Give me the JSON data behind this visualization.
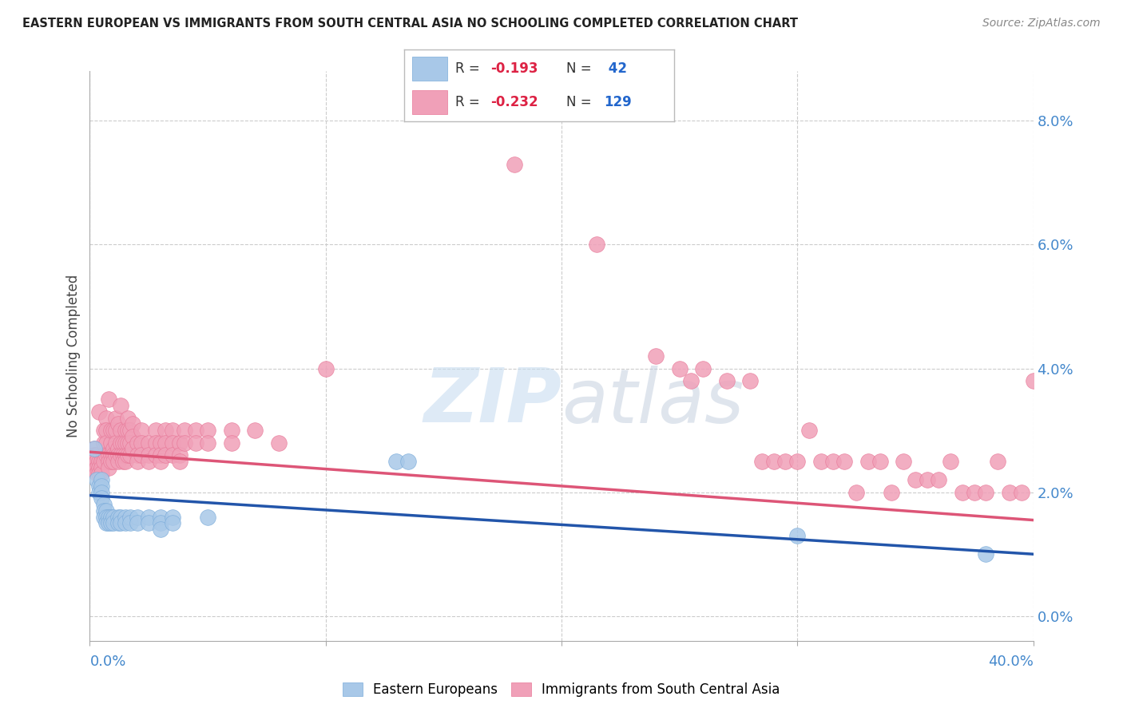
{
  "title": "EASTERN EUROPEAN VS IMMIGRANTS FROM SOUTH CENTRAL ASIA NO SCHOOLING COMPLETED CORRELATION CHART",
  "source": "Source: ZipAtlas.com",
  "ylabel": "No Schooling Completed",
  "ytick_vals": [
    0.0,
    0.02,
    0.04,
    0.06,
    0.08
  ],
  "xmin": 0.0,
  "xmax": 0.4,
  "ymin": -0.004,
  "ymax": 0.088,
  "blue_color": "#a8c8e8",
  "pink_color": "#f0a0b8",
  "blue_edge_color": "#7aabda",
  "pink_edge_color": "#e87898",
  "blue_line_color": "#2255aa",
  "pink_line_color": "#dd5577",
  "legend_box_color": "#e8f0f8",
  "legend_pink_box": "#f8d0d8",
  "r_val_color": "#dd2244",
  "n_val_color": "#2266cc",
  "grid_color": "#cccccc",
  "watermark_zip": "ZIP",
  "watermark_atlas": "atlas",
  "background_color": "#ffffff",
  "blue_scatter": [
    [
      0.002,
      0.027
    ],
    [
      0.003,
      0.022
    ],
    [
      0.004,
      0.021
    ],
    [
      0.004,
      0.02
    ],
    [
      0.005,
      0.022
    ],
    [
      0.005,
      0.021
    ],
    [
      0.005,
      0.02
    ],
    [
      0.005,
      0.019
    ],
    [
      0.006,
      0.018
    ],
    [
      0.006,
      0.017
    ],
    [
      0.006,
      0.016
    ],
    [
      0.007,
      0.017
    ],
    [
      0.007,
      0.016
    ],
    [
      0.007,
      0.015
    ],
    [
      0.008,
      0.016
    ],
    [
      0.008,
      0.015
    ],
    [
      0.009,
      0.016
    ],
    [
      0.009,
      0.015
    ],
    [
      0.01,
      0.016
    ],
    [
      0.01,
      0.015
    ],
    [
      0.012,
      0.016
    ],
    [
      0.012,
      0.015
    ],
    [
      0.013,
      0.016
    ],
    [
      0.013,
      0.015
    ],
    [
      0.015,
      0.016
    ],
    [
      0.015,
      0.015
    ],
    [
      0.017,
      0.016
    ],
    [
      0.017,
      0.015
    ],
    [
      0.02,
      0.016
    ],
    [
      0.02,
      0.015
    ],
    [
      0.025,
      0.016
    ],
    [
      0.025,
      0.015
    ],
    [
      0.03,
      0.016
    ],
    [
      0.03,
      0.015
    ],
    [
      0.03,
      0.014
    ],
    [
      0.035,
      0.016
    ],
    [
      0.035,
      0.015
    ],
    [
      0.05,
      0.016
    ],
    [
      0.13,
      0.025
    ],
    [
      0.135,
      0.025
    ],
    [
      0.3,
      0.013
    ],
    [
      0.38,
      0.01
    ]
  ],
  "pink_scatter": [
    [
      0.002,
      0.027
    ],
    [
      0.002,
      0.026
    ],
    [
      0.002,
      0.025
    ],
    [
      0.002,
      0.024
    ],
    [
      0.003,
      0.026
    ],
    [
      0.003,
      0.025
    ],
    [
      0.003,
      0.024
    ],
    [
      0.003,
      0.023
    ],
    [
      0.004,
      0.025
    ],
    [
      0.004,
      0.024
    ],
    [
      0.004,
      0.023
    ],
    [
      0.004,
      0.033
    ],
    [
      0.005,
      0.026
    ],
    [
      0.005,
      0.025
    ],
    [
      0.005,
      0.024
    ],
    [
      0.005,
      0.023
    ],
    [
      0.006,
      0.028
    ],
    [
      0.006,
      0.026
    ],
    [
      0.006,
      0.025
    ],
    [
      0.006,
      0.03
    ],
    [
      0.007,
      0.032
    ],
    [
      0.007,
      0.03
    ],
    [
      0.007,
      0.028
    ],
    [
      0.007,
      0.026
    ],
    [
      0.008,
      0.026
    ],
    [
      0.008,
      0.025
    ],
    [
      0.008,
      0.024
    ],
    [
      0.008,
      0.035
    ],
    [
      0.009,
      0.028
    ],
    [
      0.009,
      0.026
    ],
    [
      0.009,
      0.025
    ],
    [
      0.009,
      0.03
    ],
    [
      0.01,
      0.027
    ],
    [
      0.01,
      0.026
    ],
    [
      0.01,
      0.025
    ],
    [
      0.01,
      0.03
    ],
    [
      0.011,
      0.03
    ],
    [
      0.011,
      0.028
    ],
    [
      0.011,
      0.026
    ],
    [
      0.011,
      0.032
    ],
    [
      0.012,
      0.027
    ],
    [
      0.012,
      0.026
    ],
    [
      0.012,
      0.025
    ],
    [
      0.012,
      0.031
    ],
    [
      0.013,
      0.03
    ],
    [
      0.013,
      0.028
    ],
    [
      0.013,
      0.026
    ],
    [
      0.013,
      0.034
    ],
    [
      0.014,
      0.028
    ],
    [
      0.014,
      0.026
    ],
    [
      0.014,
      0.025
    ],
    [
      0.015,
      0.03
    ],
    [
      0.015,
      0.028
    ],
    [
      0.015,
      0.026
    ],
    [
      0.015,
      0.025
    ],
    [
      0.016,
      0.032
    ],
    [
      0.016,
      0.03
    ],
    [
      0.016,
      0.028
    ],
    [
      0.016,
      0.026
    ],
    [
      0.017,
      0.03
    ],
    [
      0.017,
      0.028
    ],
    [
      0.017,
      0.026
    ],
    [
      0.018,
      0.031
    ],
    [
      0.018,
      0.029
    ],
    [
      0.018,
      0.027
    ],
    [
      0.02,
      0.028
    ],
    [
      0.02,
      0.026
    ],
    [
      0.02,
      0.025
    ],
    [
      0.022,
      0.03
    ],
    [
      0.022,
      0.028
    ],
    [
      0.022,
      0.026
    ],
    [
      0.025,
      0.028
    ],
    [
      0.025,
      0.026
    ],
    [
      0.025,
      0.025
    ],
    [
      0.028,
      0.03
    ],
    [
      0.028,
      0.028
    ],
    [
      0.028,
      0.026
    ],
    [
      0.03,
      0.028
    ],
    [
      0.03,
      0.026
    ],
    [
      0.03,
      0.025
    ],
    [
      0.032,
      0.03
    ],
    [
      0.032,
      0.028
    ],
    [
      0.032,
      0.026
    ],
    [
      0.035,
      0.03
    ],
    [
      0.035,
      0.028
    ],
    [
      0.035,
      0.026
    ],
    [
      0.038,
      0.028
    ],
    [
      0.038,
      0.026
    ],
    [
      0.038,
      0.025
    ],
    [
      0.04,
      0.03
    ],
    [
      0.04,
      0.028
    ],
    [
      0.045,
      0.03
    ],
    [
      0.045,
      0.028
    ],
    [
      0.05,
      0.03
    ],
    [
      0.05,
      0.028
    ],
    [
      0.06,
      0.03
    ],
    [
      0.06,
      0.028
    ],
    [
      0.07,
      0.03
    ],
    [
      0.08,
      0.028
    ],
    [
      0.1,
      0.04
    ],
    [
      0.18,
      0.073
    ],
    [
      0.215,
      0.06
    ],
    [
      0.24,
      0.042
    ],
    [
      0.25,
      0.04
    ],
    [
      0.255,
      0.038
    ],
    [
      0.26,
      0.04
    ],
    [
      0.27,
      0.038
    ],
    [
      0.28,
      0.038
    ],
    [
      0.285,
      0.025
    ],
    [
      0.29,
      0.025
    ],
    [
      0.295,
      0.025
    ],
    [
      0.3,
      0.025
    ],
    [
      0.305,
      0.03
    ],
    [
      0.31,
      0.025
    ],
    [
      0.315,
      0.025
    ],
    [
      0.32,
      0.025
    ],
    [
      0.325,
      0.02
    ],
    [
      0.33,
      0.025
    ],
    [
      0.335,
      0.025
    ],
    [
      0.34,
      0.02
    ],
    [
      0.345,
      0.025
    ],
    [
      0.35,
      0.022
    ],
    [
      0.355,
      0.022
    ],
    [
      0.36,
      0.022
    ],
    [
      0.365,
      0.025
    ],
    [
      0.37,
      0.02
    ],
    [
      0.375,
      0.02
    ],
    [
      0.38,
      0.02
    ],
    [
      0.385,
      0.025
    ],
    [
      0.39,
      0.02
    ],
    [
      0.395,
      0.02
    ],
    [
      0.4,
      0.038
    ]
  ],
  "blue_line": {
    "x0": 0.0,
    "y0": 0.0195,
    "x1": 0.4,
    "y1": 0.01
  },
  "pink_line": {
    "x0": 0.0,
    "y0": 0.0265,
    "x1": 0.4,
    "y1": 0.0155
  }
}
